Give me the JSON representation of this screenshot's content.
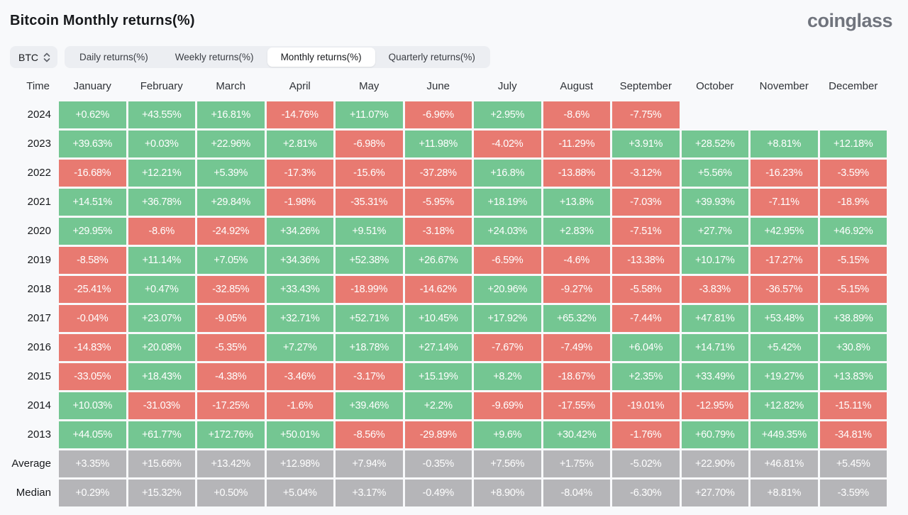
{
  "page": {
    "title": "Bitcoin Monthly returns(%)",
    "logo": "coinglass"
  },
  "toolbar": {
    "symbol_selector": {
      "label": "BTC"
    },
    "tabs": [
      {
        "label": "Daily returns(%)",
        "active": false
      },
      {
        "label": "Weekly returns(%)",
        "active": false
      },
      {
        "label": "Monthly returns(%)",
        "active": true
      },
      {
        "label": "Quarterly returns(%)",
        "active": false
      }
    ]
  },
  "table": {
    "time_header": "Time",
    "columns": [
      "January",
      "February",
      "March",
      "April",
      "May",
      "June",
      "July",
      "August",
      "September",
      "October",
      "November",
      "December"
    ],
    "rows": [
      {
        "label": "2024",
        "type": "year",
        "values": [
          "+0.62%",
          "+43.55%",
          "+16.81%",
          "-14.76%",
          "+11.07%",
          "-6.96%",
          "+2.95%",
          "-8.6%",
          "-7.75%",
          "",
          "",
          ""
        ]
      },
      {
        "label": "2023",
        "type": "year",
        "values": [
          "+39.63%",
          "+0.03%",
          "+22.96%",
          "+2.81%",
          "-6.98%",
          "+11.98%",
          "-4.02%",
          "-11.29%",
          "+3.91%",
          "+28.52%",
          "+8.81%",
          "+12.18%"
        ]
      },
      {
        "label": "2022",
        "type": "year",
        "values": [
          "-16.68%",
          "+12.21%",
          "+5.39%",
          "-17.3%",
          "-15.6%",
          "-37.28%",
          "+16.8%",
          "-13.88%",
          "-3.12%",
          "+5.56%",
          "-16.23%",
          "-3.59%"
        ]
      },
      {
        "label": "2021",
        "type": "year",
        "values": [
          "+14.51%",
          "+36.78%",
          "+29.84%",
          "-1.98%",
          "-35.31%",
          "-5.95%",
          "+18.19%",
          "+13.8%",
          "-7.03%",
          "+39.93%",
          "-7.11%",
          "-18.9%"
        ]
      },
      {
        "label": "2020",
        "type": "year",
        "values": [
          "+29.95%",
          "-8.6%",
          "-24.92%",
          "+34.26%",
          "+9.51%",
          "-3.18%",
          "+24.03%",
          "+2.83%",
          "-7.51%",
          "+27.7%",
          "+42.95%",
          "+46.92%"
        ]
      },
      {
        "label": "2019",
        "type": "year",
        "values": [
          "-8.58%",
          "+11.14%",
          "+7.05%",
          "+34.36%",
          "+52.38%",
          "+26.67%",
          "-6.59%",
          "-4.6%",
          "-13.38%",
          "+10.17%",
          "-17.27%",
          "-5.15%"
        ]
      },
      {
        "label": "2018",
        "type": "year",
        "values": [
          "-25.41%",
          "+0.47%",
          "-32.85%",
          "+33.43%",
          "-18.99%",
          "-14.62%",
          "+20.96%",
          "-9.27%",
          "-5.58%",
          "-3.83%",
          "-36.57%",
          "-5.15%"
        ]
      },
      {
        "label": "2017",
        "type": "year",
        "values": [
          "-0.04%",
          "+23.07%",
          "-9.05%",
          "+32.71%",
          "+52.71%",
          "+10.45%",
          "+17.92%",
          "+65.32%",
          "-7.44%",
          "+47.81%",
          "+53.48%",
          "+38.89%"
        ]
      },
      {
        "label": "2016",
        "type": "year",
        "values": [
          "-14.83%",
          "+20.08%",
          "-5.35%",
          "+7.27%",
          "+18.78%",
          "+27.14%",
          "-7.67%",
          "-7.49%",
          "+6.04%",
          "+14.71%",
          "+5.42%",
          "+30.8%"
        ]
      },
      {
        "label": "2015",
        "type": "year",
        "values": [
          "-33.05%",
          "+18.43%",
          "-4.38%",
          "-3.46%",
          "-3.17%",
          "+15.19%",
          "+8.2%",
          "-18.67%",
          "+2.35%",
          "+33.49%",
          "+19.27%",
          "+13.83%"
        ]
      },
      {
        "label": "2014",
        "type": "year",
        "values": [
          "+10.03%",
          "-31.03%",
          "-17.25%",
          "-1.6%",
          "+39.46%",
          "+2.2%",
          "-9.69%",
          "-17.55%",
          "-19.01%",
          "-12.95%",
          "+12.82%",
          "-15.11%"
        ]
      },
      {
        "label": "2013",
        "type": "year",
        "values": [
          "+44.05%",
          "+61.77%",
          "+172.76%",
          "+50.01%",
          "-8.56%",
          "-29.89%",
          "+9.6%",
          "+30.42%",
          "-1.76%",
          "+60.79%",
          "+449.35%",
          "-34.81%"
        ]
      },
      {
        "label": "Average",
        "type": "summary",
        "values": [
          "+3.35%",
          "+15.66%",
          "+13.42%",
          "+12.98%",
          "+7.94%",
          "-0.35%",
          "+7.56%",
          "+1.75%",
          "-5.02%",
          "+22.90%",
          "+46.81%",
          "+5.45%"
        ]
      },
      {
        "label": "Median",
        "type": "summary",
        "values": [
          "+0.29%",
          "+15.32%",
          "+0.50%",
          "+5.04%",
          "+3.17%",
          "-0.49%",
          "+8.90%",
          "-8.04%",
          "-6.30%",
          "+27.70%",
          "+8.81%",
          "-3.59%"
        ]
      }
    ]
  },
  "colors": {
    "positive": "#74c692",
    "negative": "#e87a71",
    "summary": "#b5b5b8",
    "page_background": "#f8f9fb",
    "cell_text": "#ffffff"
  }
}
